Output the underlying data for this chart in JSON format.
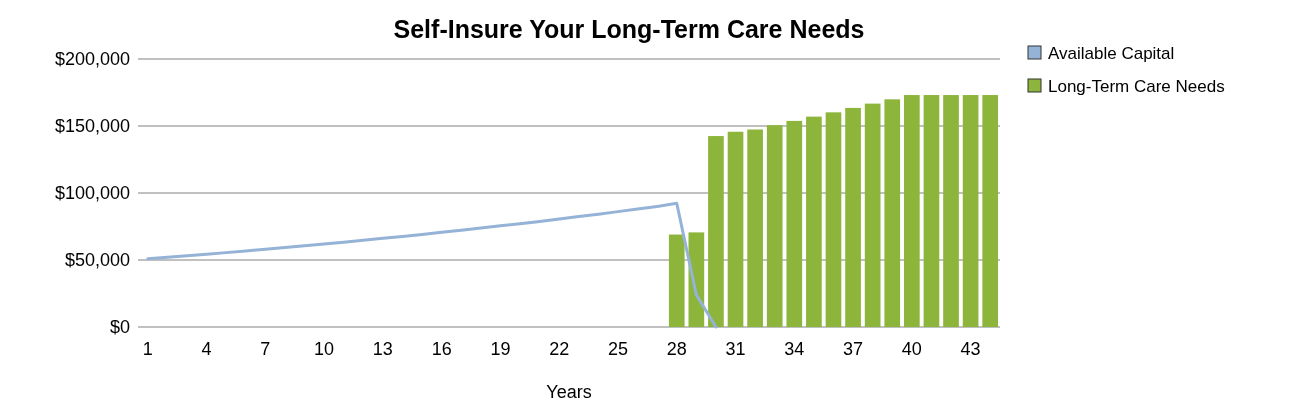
{
  "chart_data": {
    "type": "bar",
    "title": "Self-Insure Your Long-Term Care Needs",
    "xlabel": "Years",
    "categories": [
      "1",
      null,
      null,
      "4",
      null,
      null,
      "7",
      null,
      null,
      "10",
      null,
      null,
      "13",
      null,
      null,
      "16",
      null,
      null,
      "19",
      null,
      null,
      "22",
      null,
      null,
      "25",
      null,
      null,
      "28",
      null,
      null,
      "31",
      null,
      null,
      "34",
      null,
      null,
      "37",
      null,
      null,
      "40",
      null,
      null,
      "43",
      null
    ],
    "series": [
      {
        "name": "Available Capital",
        "type": "line",
        "color": "#95b3d7",
        "values": [
          51000,
          52000,
          53200,
          54300,
          55500,
          56800,
          58000,
          59300,
          60600,
          62000,
          63300,
          64700,
          66200,
          67600,
          69100,
          70700,
          72200,
          73800,
          75500,
          77100,
          78800,
          80600,
          82400,
          84200,
          86100,
          88000,
          90000,
          92300,
          24000,
          0,
          null,
          null,
          null,
          null,
          null,
          null,
          null,
          null,
          null,
          null,
          null,
          null,
          null,
          null
        ]
      },
      {
        "name": "Long-Term Care Needs",
        "color": "#8db53c",
        "values": [
          null,
          null,
          null,
          null,
          null,
          null,
          null,
          null,
          null,
          null,
          null,
          null,
          null,
          null,
          null,
          null,
          null,
          null,
          null,
          null,
          null,
          null,
          null,
          null,
          null,
          null,
          null,
          69000,
          70600,
          142500,
          145700,
          147400,
          150600,
          153800,
          157000,
          160200,
          163500,
          166700,
          169900,
          173100,
          173100,
          173100,
          173100,
          173100
        ]
      }
    ],
    "ylim": [
      0,
      200000
    ],
    "yticks": [
      {
        "value": 0,
        "label": "$0"
      },
      {
        "value": 50000,
        "label": "$50,000"
      },
      {
        "value": 100000,
        "label": "$100,000"
      },
      {
        "value": 150000,
        "label": "$150,000"
      },
      {
        "value": 200000,
        "label": "$200,000"
      }
    ],
    "grid": "y",
    "legend": "top right"
  }
}
